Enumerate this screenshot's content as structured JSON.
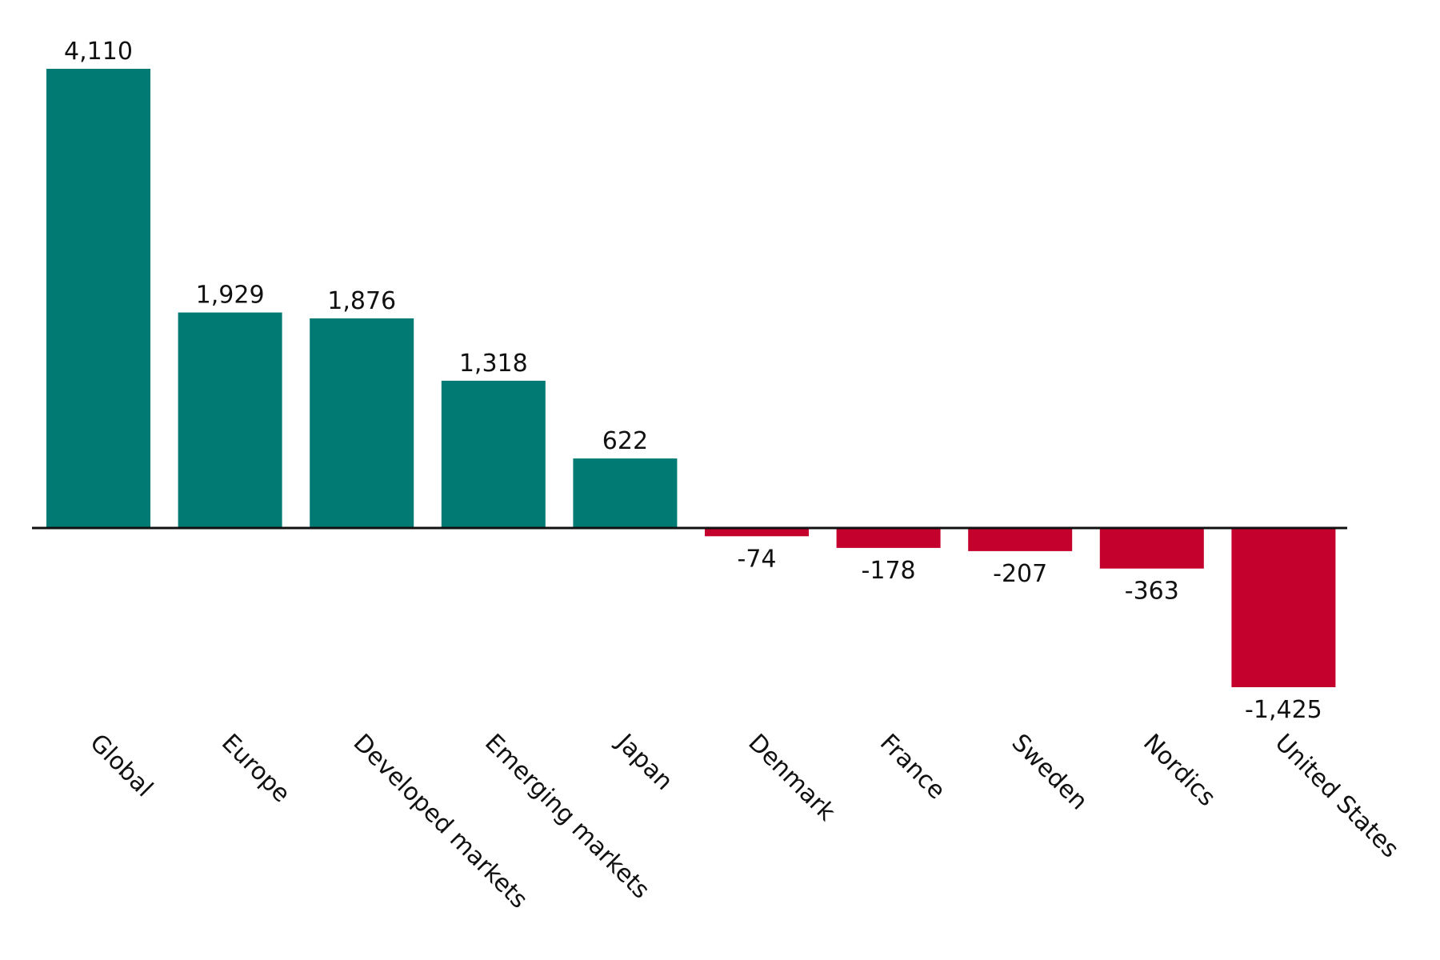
{
  "chart_data": {
    "type": "bar",
    "title": "",
    "xlabel": "",
    "ylabel": "",
    "categories": [
      "Global",
      "Europe",
      "Developed markets",
      "Emerging markets",
      "Japan",
      "Denmark",
      "France",
      "Sweden",
      "Nordics",
      "United States"
    ],
    "values": [
      4110,
      1929,
      1876,
      1318,
      622,
      -74,
      -178,
      -207,
      -363,
      -1425
    ],
    "value_labels": [
      "4,110",
      "1,929",
      "1,876",
      "1,318",
      "622",
      "-74",
      "-178",
      "-207",
      "-363",
      "-1,425"
    ],
    "ylim": [
      -1425,
      4110
    ],
    "grid": false,
    "legend": "none",
    "colors": {
      "positive": "#007A73",
      "negative": "#C4002D",
      "axis": "#111111",
      "text": "#111111"
    }
  }
}
